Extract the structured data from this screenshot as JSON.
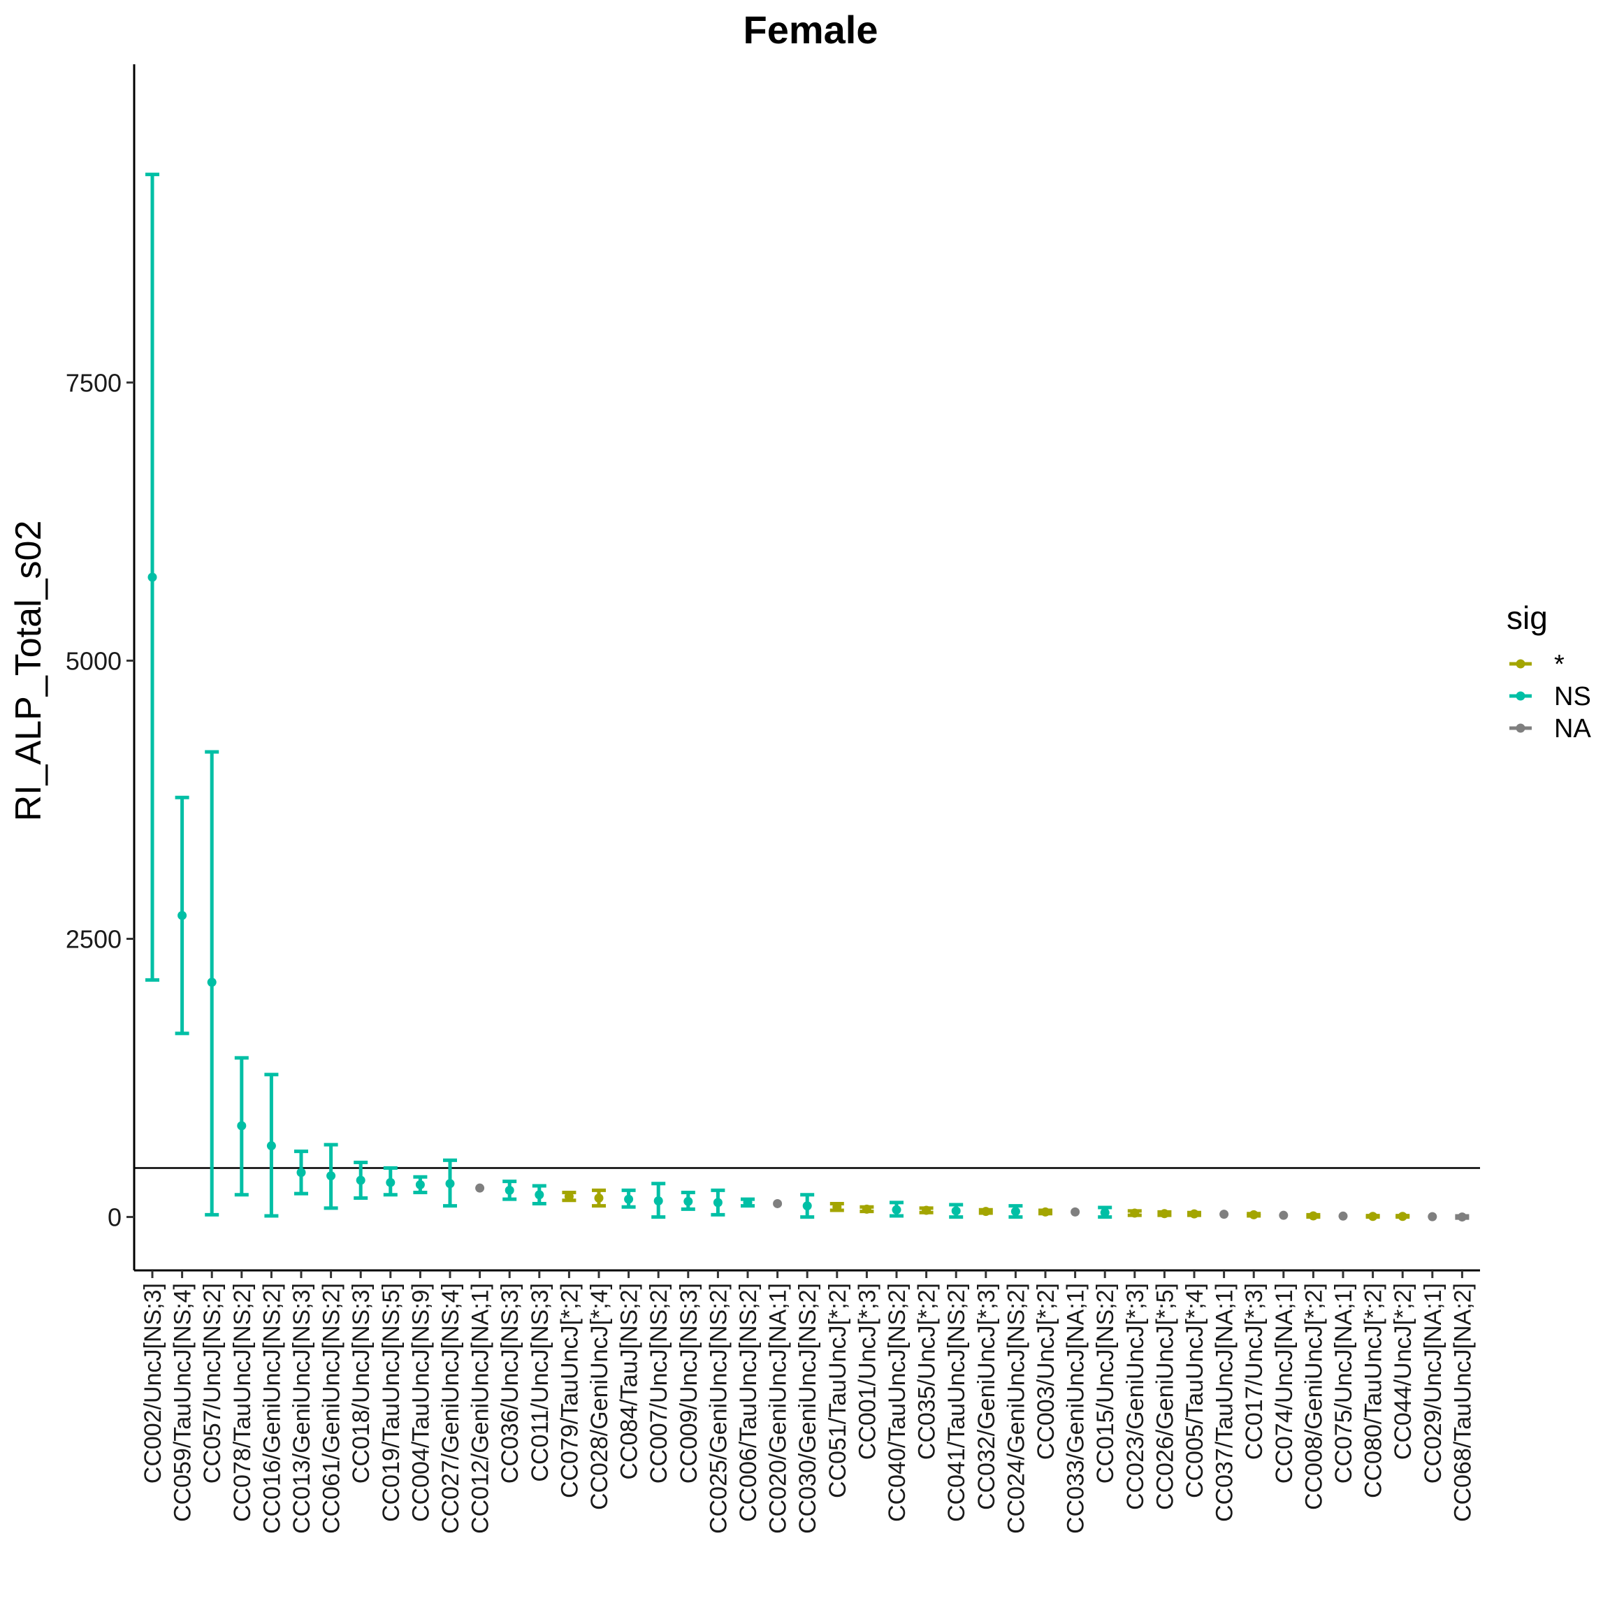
{
  "chart_data": {
    "type": "scatter",
    "title": "Female",
    "xlabel": "",
    "ylabel": "RI_ALP_Total_s02",
    "ylim": [
      -480,
      10360
    ],
    "yticks": [
      0,
      2500,
      5000,
      7500
    ],
    "reference_line_y": 440,
    "grid": false,
    "legend": {
      "title": "sig",
      "position": "right",
      "entries": [
        {
          "key": "*",
          "label": "*",
          "color": "#a3a500"
        },
        {
          "key": "NS",
          "label": "NS",
          "color": "#00bfa5"
        },
        {
          "key": "NA",
          "label": "NA",
          "color": "#7f7f7f"
        }
      ]
    },
    "categories": [
      "CC002/UncJ[NS;3]",
      "CC059/TauUncJ[NS;4]",
      "CC057/UncJ[NS;2]",
      "CC078/TauUncJ[NS;2]",
      "CC016/GeniUncJ[NS;2]",
      "CC013/GeniUncJ[NS;3]",
      "CC061/GeniUncJ[NS;2]",
      "CC018/UncJ[NS;3]",
      "CC019/TauUncJ[NS;5]",
      "CC004/TauUncJ[NS;9]",
      "CC027/GeniUncJ[NS;4]",
      "CC012/GeniUncJ[NA;1]",
      "CC036/UncJ[NS;3]",
      "CC011/UncJ[NS;3]",
      "CC079/TauUncJ[*;2]",
      "CC028/GeniUncJ[*;4]",
      "CC084/TauJ[NS;2]",
      "CC007/UncJ[NS;2]",
      "CC009/UncJ[NS;3]",
      "CC025/GeniUncJ[NS;2]",
      "CC006/TauUncJ[NS;2]",
      "CC020/GeniUncJ[NA;1]",
      "CC030/GeniUncJ[NS;2]",
      "CC051/TauUncJ[*;2]",
      "CC001/UncJ[*;3]",
      "CC040/TauUncJ[NS;2]",
      "CC035/UncJ[*;2]",
      "CC041/TauUncJ[NS;2]",
      "CC032/GeniUncJ[*;3]",
      "CC024/GeniUncJ[NS;2]",
      "CC003/UncJ[*;2]",
      "CC033/GeniUncJ[NA;1]",
      "CC015/UncJ[NS;2]",
      "CC023/GeniUncJ[*;3]",
      "CC026/GeniUncJ[*;5]",
      "CC005/TauUncJ[*;4]",
      "CC037/TauUncJ[NA;1]",
      "CC017/UncJ[*;3]",
      "CC074/UncJ[NA;1]",
      "CC008/GeniUncJ[*;2]",
      "CC075/UncJ[NA;1]",
      "CC080/TauUncJ[*;2]",
      "CC044/UncJ[*;2]",
      "CC029/UncJ[NA;1]",
      "CC068/TauUncJ[NA;2]"
    ],
    "points": [
      {
        "sig": "NS",
        "y": 5750,
        "ymin": 2130,
        "ymax": 9370
      },
      {
        "sig": "NS",
        "y": 2710,
        "ymin": 1650,
        "ymax": 3770
      },
      {
        "sig": "NS",
        "y": 2110,
        "ymin": 20,
        "ymax": 4180
      },
      {
        "sig": "NS",
        "y": 820,
        "ymin": 200,
        "ymax": 1430
      },
      {
        "sig": "NS",
        "y": 640,
        "ymin": 10,
        "ymax": 1280
      },
      {
        "sig": "NS",
        "y": 400,
        "ymin": 210,
        "ymax": 590
      },
      {
        "sig": "NS",
        "y": 370,
        "ymin": 80,
        "ymax": 650
      },
      {
        "sig": "NS",
        "y": 330,
        "ymin": 170,
        "ymax": 490
      },
      {
        "sig": "NS",
        "y": 310,
        "ymin": 200,
        "ymax": 440
      },
      {
        "sig": "NS",
        "y": 290,
        "ymin": 220,
        "ymax": 360
      },
      {
        "sig": "NS",
        "y": 300,
        "ymin": 100,
        "ymax": 510
      },
      {
        "sig": "NA",
        "y": 260
      },
      {
        "sig": "NS",
        "y": 240,
        "ymin": 160,
        "ymax": 320
      },
      {
        "sig": "NS",
        "y": 200,
        "ymin": 120,
        "ymax": 280
      },
      {
        "sig": "*",
        "y": 185,
        "ymin": 150,
        "ymax": 220
      },
      {
        "sig": "*",
        "y": 170,
        "ymin": 100,
        "ymax": 240
      },
      {
        "sig": "NS",
        "y": 160,
        "ymin": 90,
        "ymax": 240
      },
      {
        "sig": "NS",
        "y": 145,
        "ymin": 0,
        "ymax": 300
      },
      {
        "sig": "NS",
        "y": 140,
        "ymin": 70,
        "ymax": 220
      },
      {
        "sig": "NS",
        "y": 130,
        "ymin": 20,
        "ymax": 240
      },
      {
        "sig": "NS",
        "y": 130,
        "ymin": 100,
        "ymax": 160
      },
      {
        "sig": "NA",
        "y": 120
      },
      {
        "sig": "NS",
        "y": 100,
        "ymin": 0,
        "ymax": 200
      },
      {
        "sig": "*",
        "y": 90,
        "ymin": 60,
        "ymax": 120
      },
      {
        "sig": "*",
        "y": 70,
        "ymin": 50,
        "ymax": 90
      },
      {
        "sig": "NS",
        "y": 65,
        "ymin": 10,
        "ymax": 130
      },
      {
        "sig": "*",
        "y": 60,
        "ymin": 40,
        "ymax": 80
      },
      {
        "sig": "NS",
        "y": 55,
        "ymin": 0,
        "ymax": 110
      },
      {
        "sig": "*",
        "y": 50,
        "ymin": 35,
        "ymax": 65
      },
      {
        "sig": "NS",
        "y": 50,
        "ymin": 0,
        "ymax": 100
      },
      {
        "sig": "*",
        "y": 45,
        "ymin": 30,
        "ymax": 60
      },
      {
        "sig": "NA",
        "y": 45
      },
      {
        "sig": "NS",
        "y": 40,
        "ymin": 0,
        "ymax": 85
      },
      {
        "sig": "*",
        "y": 35,
        "ymin": 15,
        "ymax": 55
      },
      {
        "sig": "*",
        "y": 30,
        "ymin": 15,
        "ymax": 45
      },
      {
        "sig": "*",
        "y": 28,
        "ymin": 15,
        "ymax": 40
      },
      {
        "sig": "NA",
        "y": 25
      },
      {
        "sig": "*",
        "y": 20,
        "ymin": 10,
        "ymax": 30
      },
      {
        "sig": "NA",
        "y": 15
      },
      {
        "sig": "*",
        "y": 10,
        "ymin": 0,
        "ymax": 20
      },
      {
        "sig": "NA",
        "y": 8
      },
      {
        "sig": "*",
        "y": 5,
        "ymin": 0,
        "ymax": 12
      },
      {
        "sig": "*",
        "y": 5,
        "ymin": 0,
        "ymax": 12
      },
      {
        "sig": "NA",
        "y": 3
      },
      {
        "sig": "NA",
        "y": 0,
        "ymin": -10,
        "ymax": 10
      }
    ]
  }
}
